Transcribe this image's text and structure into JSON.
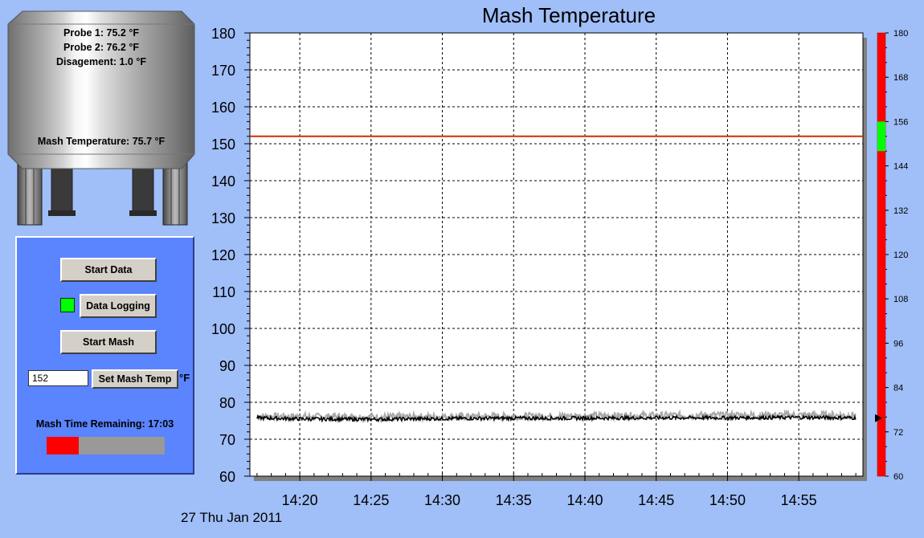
{
  "tank": {
    "probe1": "Probe 1: 75.2 °F",
    "probe2": "Probe 2: 76.2 °F",
    "disagreement": "Disagement: 1.0 °F",
    "mash_temperature": "Mash Temperature: 75.7 °F"
  },
  "controls": {
    "start_data_label": "Start Data",
    "data_logging_label": "Data Logging",
    "data_logging_active": true,
    "start_mash_label": "Start Mash",
    "set_temp_value": "152",
    "set_temp_label": "Set Mash Temp",
    "unit_label": "°F",
    "time_remaining": "Mash Time Remaining: 17:03",
    "progress_fraction": 0.27
  },
  "footer": {
    "date": "27 Thu Jan 2011"
  },
  "colors": {
    "background": "#a0bef8",
    "panel": "#5b84ff",
    "led_on": "#00ff00",
    "setpoint_line": "#cc3300",
    "gauge_red": "#ff0000",
    "gauge_green": "#00ff00"
  },
  "chart_data": {
    "type": "line",
    "title": "Mash Temperature",
    "y_ticks": [
      "180",
      "170",
      "160",
      "150",
      "140",
      "130",
      "120",
      "110",
      "100",
      "90",
      "80",
      "70",
      "60"
    ],
    "x_ticks": [
      "14:20",
      "14:25",
      "14:30",
      "14:35",
      "14:40",
      "14:45",
      "14:50",
      "14:55"
    ],
    "ylim": [
      60,
      180
    ],
    "xlim": [
      "14:16:30",
      "14:59:30"
    ],
    "grid": true,
    "setpoint": 152,
    "series": [
      {
        "color": "#aaaaaa",
        "x": [
          "14:17",
          "14:20",
          "14:25",
          "14:30",
          "14:35",
          "14:40",
          "14:45",
          "14:50",
          "14:55",
          "14:59"
        ],
        "y": [
          76.2,
          76.1,
          76.0,
          76.1,
          76.2,
          76.3,
          76.4,
          76.5,
          76.5,
          76.5
        ]
      },
      {
        "color": "#000000",
        "x": [
          "14:17",
          "14:20",
          "14:25",
          "14:30",
          "14:35",
          "14:40",
          "14:45",
          "14:50",
          "14:55",
          "14:59"
        ],
        "y": [
          75.8,
          75.5,
          75.4,
          75.6,
          75.7,
          75.7,
          75.8,
          75.8,
          75.9,
          75.8
        ]
      }
    ],
    "gauge": {
      "ticks": [
        "180",
        "168",
        "156",
        "144",
        "132",
        "120",
        "108",
        "96",
        "84",
        "72",
        "60"
      ],
      "range": [
        60,
        180
      ],
      "green_band": [
        148,
        156
      ],
      "pointer": 75.7
    }
  }
}
